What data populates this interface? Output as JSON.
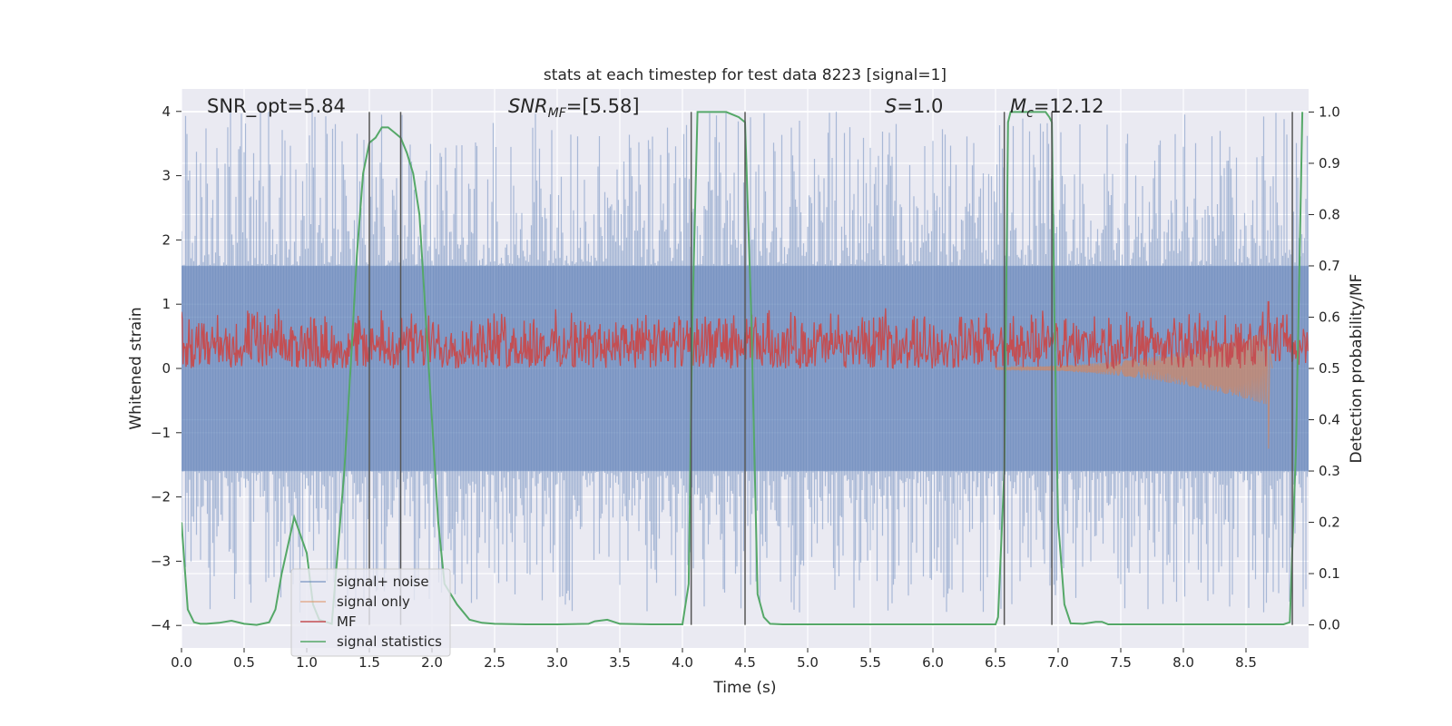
{
  "chart_data": {
    "type": "line",
    "title": "stats at each timestep for test data 8223 [signal=1]",
    "xlabel": "Time (s)",
    "ylabel_left": "Whitened strain",
    "ylabel_right": "Detection probability/MF",
    "xlim": [
      0.0,
      9.0
    ],
    "ylim_left": [
      -4.35,
      4.35
    ],
    "ylim_right": [
      -0.045,
      1.045
    ],
    "xticks": [
      "0.0",
      "0.5",
      "1.0",
      "1.5",
      "2.0",
      "2.5",
      "3.0",
      "3.5",
      "4.0",
      "4.5",
      "5.0",
      "5.5",
      "6.0",
      "6.5",
      "7.0",
      "7.5",
      "8.0",
      "8.5"
    ],
    "xtick_values": [
      0.0,
      0.5,
      1.0,
      1.5,
      2.0,
      2.5,
      3.0,
      3.5,
      4.0,
      4.5,
      5.0,
      5.5,
      6.0,
      6.5,
      7.0,
      7.5,
      8.0,
      8.5
    ],
    "yticks_left": [
      "4",
      "3",
      "2",
      "1",
      "0",
      "−1",
      "−2",
      "−3",
      "−4"
    ],
    "ytick_left_values": [
      4,
      3,
      2,
      1,
      0,
      -1,
      -2,
      -3,
      -4
    ],
    "yticks_right": [
      "1.0",
      "0.9",
      "0.8",
      "0.7",
      "0.6",
      "0.5",
      "0.4",
      "0.3",
      "0.2",
      "0.1",
      "0.0"
    ],
    "ytick_right_values": [
      1.0,
      0.9,
      0.8,
      0.7,
      0.6,
      0.5,
      0.4,
      0.3,
      0.2,
      0.1,
      0.0
    ],
    "grid": true,
    "annotations": {
      "snr_opt": "SNR_opt=5.84",
      "snr_mf_base": "SNR",
      "snr_mf_sub": "MF",
      "snr_mf_value": "=[5.58]",
      "s_sym": "S",
      "s_value": "=1.0",
      "mc_sym": "M",
      "mc_sub": "c",
      "mc_value": "=12.12"
    },
    "vertical_markers": [
      1.5,
      1.75,
      4.07,
      4.5,
      6.57,
      6.95,
      8.87
    ],
    "legend_position": "lower-left",
    "series": [
      {
        "name": "signal+ noise",
        "color": "#4c72b0",
        "kind": "noise",
        "envelope": 1.6,
        "peak": 4.0
      },
      {
        "name": "signal only",
        "color": "#dd8452",
        "kind": "chirp",
        "start": 6.5,
        "end": 8.68,
        "amp_end": 1.0
      },
      {
        "name": "MF",
        "color": "#c44e52",
        "kind": "mf",
        "axis": "right",
        "base": 0.505,
        "range": [
          0.5,
          0.62
        ],
        "peak_t": 8.68,
        "peak_v": 0.63
      },
      {
        "name": "signal statistics",
        "color": "#55a868",
        "kind": "line",
        "axis": "right",
        "x": [
          0.0,
          0.05,
          0.1,
          0.15,
          0.2,
          0.3,
          0.4,
          0.5,
          0.6,
          0.7,
          0.75,
          0.8,
          0.9,
          1.0,
          1.05,
          1.1,
          1.2,
          1.3,
          1.35,
          1.4,
          1.45,
          1.5,
          1.55,
          1.6,
          1.65,
          1.7,
          1.75,
          1.8,
          1.85,
          1.9,
          1.95,
          2.0,
          2.05,
          2.1,
          2.2,
          2.3,
          2.4,
          2.5,
          2.75,
          3.0,
          3.25,
          3.3,
          3.4,
          3.5,
          3.75,
          4.0,
          4.05,
          4.08,
          4.12,
          4.2,
          4.35,
          4.45,
          4.5,
          4.55,
          4.6,
          4.65,
          4.7,
          4.8,
          5.0,
          5.5,
          6.0,
          6.5,
          6.52,
          6.57,
          6.6,
          6.62,
          6.7,
          6.8,
          6.9,
          6.93,
          6.95,
          6.97,
          7.0,
          7.05,
          7.1,
          7.2,
          7.3,
          7.35,
          7.4,
          7.5,
          8.0,
          8.5,
          8.8,
          8.85,
          8.87,
          8.9,
          8.95
        ],
        "y": [
          0.2,
          0.03,
          0.005,
          0.002,
          0.002,
          0.004,
          0.008,
          0.002,
          0.0,
          0.005,
          0.03,
          0.1,
          0.21,
          0.14,
          0.04,
          0.01,
          0.002,
          0.3,
          0.5,
          0.72,
          0.88,
          0.94,
          0.95,
          0.97,
          0.97,
          0.96,
          0.95,
          0.92,
          0.88,
          0.8,
          0.6,
          0.4,
          0.2,
          0.08,
          0.04,
          0.01,
          0.004,
          0.002,
          0.001,
          0.001,
          0.002,
          0.007,
          0.01,
          0.002,
          0.001,
          0.001,
          0.08,
          0.6,
          1.0,
          1.0,
          1.0,
          0.99,
          0.98,
          0.6,
          0.06,
          0.015,
          0.002,
          0.001,
          0.001,
          0.001,
          0.001,
          0.001,
          0.015,
          0.3,
          0.98,
          1.0,
          1.0,
          1.0,
          1.0,
          0.99,
          0.98,
          0.6,
          0.2,
          0.04,
          0.003,
          0.002,
          0.006,
          0.006,
          0.001,
          0.001,
          0.001,
          0.001,
          0.001,
          0.005,
          0.15,
          0.35,
          1.0
        ]
      }
    ]
  }
}
